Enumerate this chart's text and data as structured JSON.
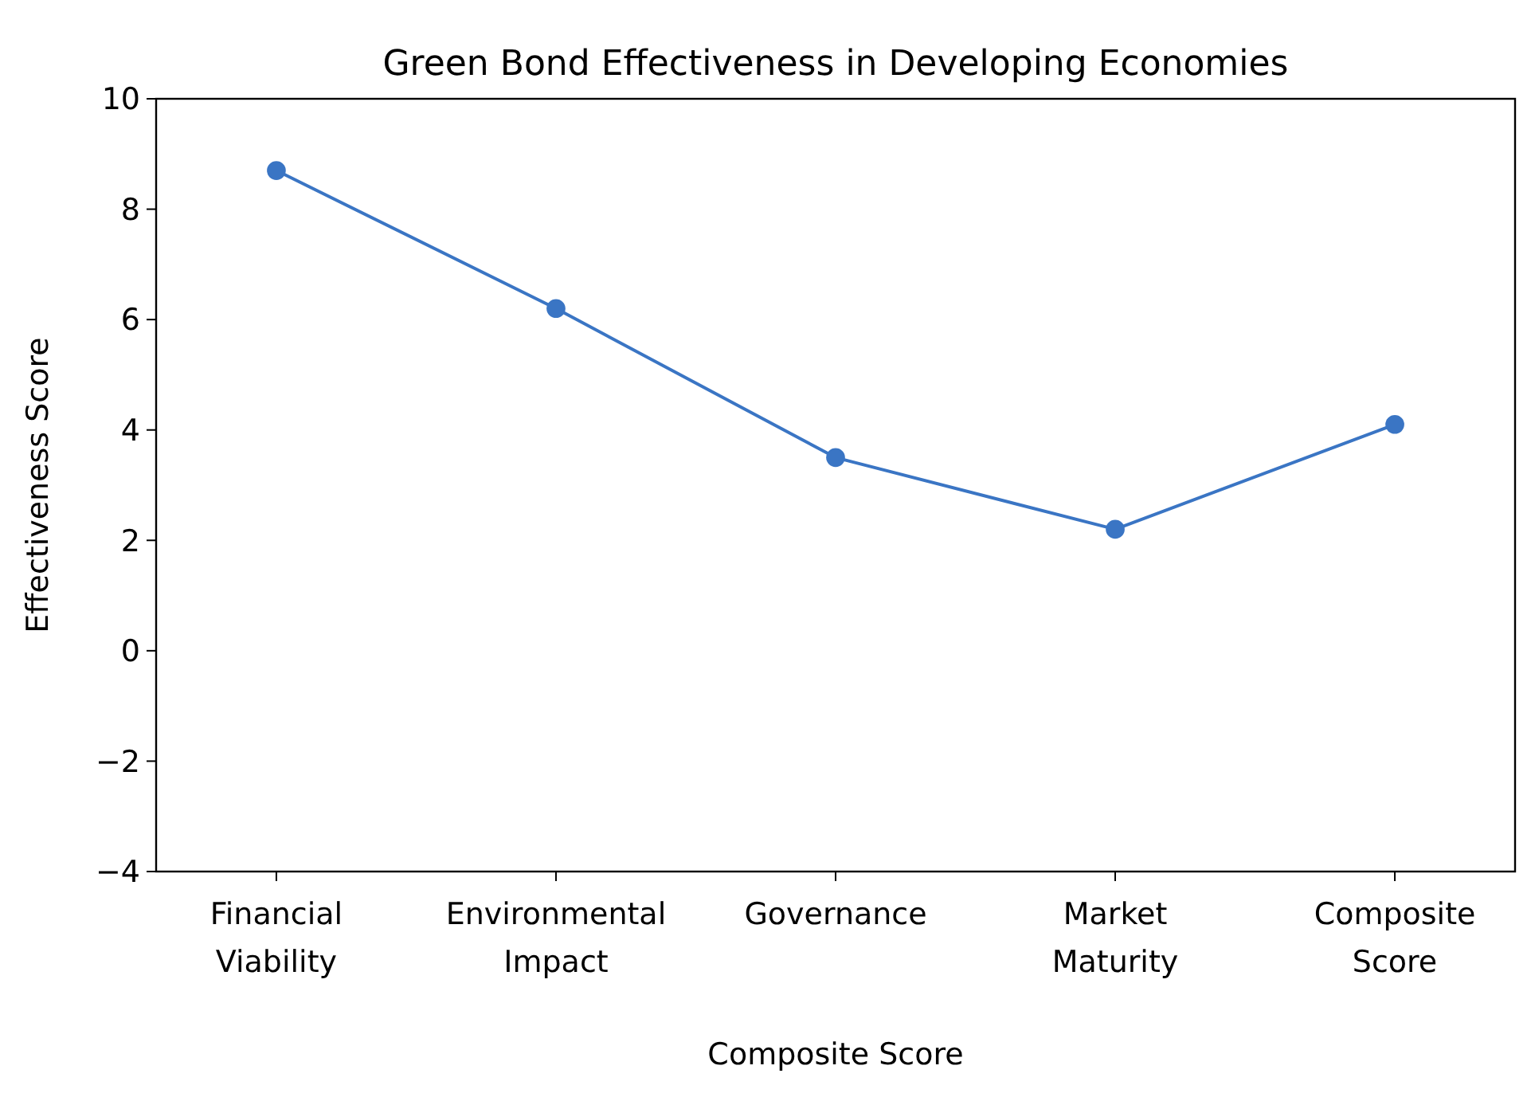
{
  "chart_data": {
    "type": "line",
    "title": "Green Bond Effectiveness in Developing Economies",
    "xlabel": "Composite Score",
    "ylabel": "Effectiveness Score",
    "categories": [
      "Financial\nViability",
      "Environmental\nImpact",
      "Governance",
      "Market\nMaturity",
      "Composite\nScore"
    ],
    "series": [
      {
        "color": "#3a75c4",
        "values": [
          8.7,
          6.2,
          3.5,
          2.2,
          4.1
        ]
      }
    ],
    "ylim": [
      -4,
      10
    ],
    "yticks": [
      -4,
      -2,
      0,
      2,
      4,
      6,
      8,
      10
    ],
    "marker": "circle",
    "grid": false
  }
}
